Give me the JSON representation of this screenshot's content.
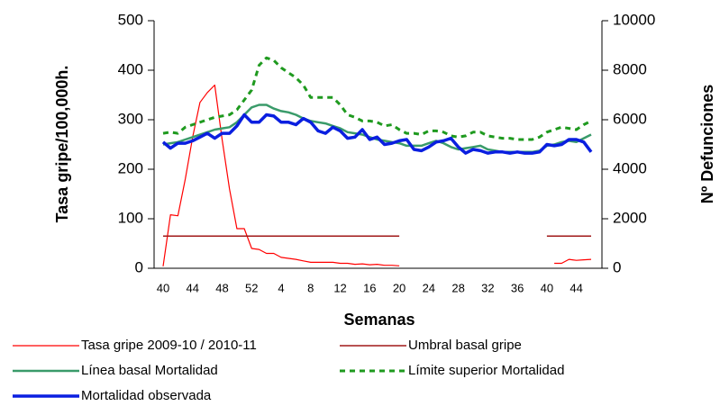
{
  "chart_data": {
    "type": "line",
    "x_label": "Semanas",
    "y_label": "Tasa gripe/100,000h.",
    "y2_label": "Nº Defunciones",
    "categories": [
      "40",
      null,
      null,
      null,
      "44",
      null,
      null,
      null,
      "48",
      null,
      null,
      null,
      "52",
      null,
      null,
      null,
      "4",
      null,
      null,
      null,
      "8",
      null,
      null,
      null,
      "12",
      null,
      null,
      null,
      "16",
      null,
      null,
      null,
      "20",
      null,
      null,
      null,
      "24",
      null,
      null,
      null,
      "28",
      null,
      null,
      null,
      "32",
      null,
      null,
      null,
      "36",
      null,
      null,
      null,
      "40",
      null,
      null,
      null,
      "44",
      null,
      null
    ],
    "ylim": [
      0,
      500
    ],
    "yticks": [
      0,
      100,
      200,
      300,
      400,
      500
    ],
    "y2lim": [
      0,
      10000
    ],
    "y2ticks": [
      0,
      2000,
      4000,
      6000,
      8000,
      10000
    ],
    "series": [
      {
        "name": "Tasa gripe 2009-10 / 2010-11",
        "color": "#ff0000",
        "linestyle": "solid",
        "axis": "y",
        "values": [
          4,
          108,
          106,
          180,
          265,
          335,
          355,
          370,
          260,
          160,
          80,
          80,
          40,
          38,
          30,
          30,
          22,
          20,
          18,
          15,
          12,
          12,
          12,
          12,
          10,
          10,
          8,
          9,
          7,
          8,
          6,
          6,
          5,
          null,
          null,
          null,
          null,
          null,
          null,
          null,
          null,
          null,
          null,
          null,
          null,
          null,
          null,
          null,
          null,
          null,
          null,
          null,
          null,
          10,
          10,
          18,
          16,
          17,
          18
        ]
      },
      {
        "name": "Umbral basal gripe",
        "color": "#a01818",
        "linestyle": "solid",
        "axis": "y",
        "values": [
          65,
          65,
          65,
          65,
          65,
          65,
          65,
          65,
          65,
          65,
          65,
          65,
          65,
          65,
          65,
          65,
          65,
          65,
          65,
          65,
          65,
          65,
          65,
          65,
          65,
          65,
          65,
          65,
          65,
          65,
          65,
          65,
          65,
          null,
          null,
          null,
          null,
          null,
          null,
          null,
          null,
          null,
          null,
          null,
          null,
          null,
          null,
          null,
          null,
          null,
          null,
          null,
          65,
          65,
          65,
          65,
          65,
          65,
          65
        ]
      },
      {
        "name": "Línea basal Mortalidad",
        "color": "#3a9b6a",
        "linestyle": "solid",
        "axis": "y2",
        "values": [
          5000,
          5050,
          5100,
          5200,
          5300,
          5400,
          5500,
          5600,
          5650,
          5700,
          5900,
          6200,
          6500,
          6600,
          6600,
          6450,
          6350,
          6300,
          6200,
          6050,
          5950,
          5900,
          5850,
          5750,
          5650,
          5500,
          5450,
          5400,
          5300,
          5200,
          5150,
          5100,
          5050,
          4950,
          4950,
          4950,
          5050,
          5150,
          5050,
          4900,
          4800,
          4850,
          4900,
          4950,
          4800,
          4750,
          4700,
          4700,
          4700,
          4700,
          4700,
          4750,
          4950,
          5000,
          5100,
          5150,
          5100,
          5250,
          5400
        ]
      },
      {
        "name": "Límite superior Mortalidad",
        "color": "#1f9a1f",
        "linestyle": "dotted",
        "axis": "y2",
        "values": [
          5450,
          5500,
          5450,
          5700,
          5800,
          5900,
          6000,
          6100,
          6150,
          6200,
          6400,
          6800,
          7200,
          8200,
          8500,
          8400,
          8100,
          7900,
          7700,
          7400,
          6900,
          6900,
          6900,
          6900,
          6600,
          6200,
          6100,
          5950,
          5950,
          5900,
          5750,
          5800,
          5600,
          5450,
          5450,
          5400,
          5550,
          5550,
          5500,
          5350,
          5300,
          5350,
          5500,
          5500,
          5350,
          5300,
          5250,
          5250,
          5200,
          5200,
          5200,
          5300,
          5500,
          5600,
          5700,
          5650,
          5600,
          5800,
          5950
        ]
      },
      {
        "name": "Mortalidad observada",
        "color": "#0a1fe0",
        "linestyle": "solid",
        "axis": "y2",
        "values": [
          5100,
          4850,
          5050,
          5050,
          5150,
          5300,
          5450,
          5250,
          5450,
          5450,
          5750,
          6200,
          5900,
          5900,
          6200,
          6150,
          5900,
          5900,
          5800,
          6050,
          5900,
          5550,
          5450,
          5700,
          5550,
          5250,
          5300,
          5600,
          5200,
          5300,
          5000,
          5050,
          5150,
          5200,
          4800,
          4750,
          4900,
          5100,
          5150,
          5250,
          4900,
          4650,
          4800,
          4750,
          4650,
          4700,
          4700,
          4650,
          4700,
          4650,
          4650,
          4700,
          5000,
          4950,
          5000,
          5200,
          5200,
          5100,
          4700
        ]
      }
    ]
  }
}
